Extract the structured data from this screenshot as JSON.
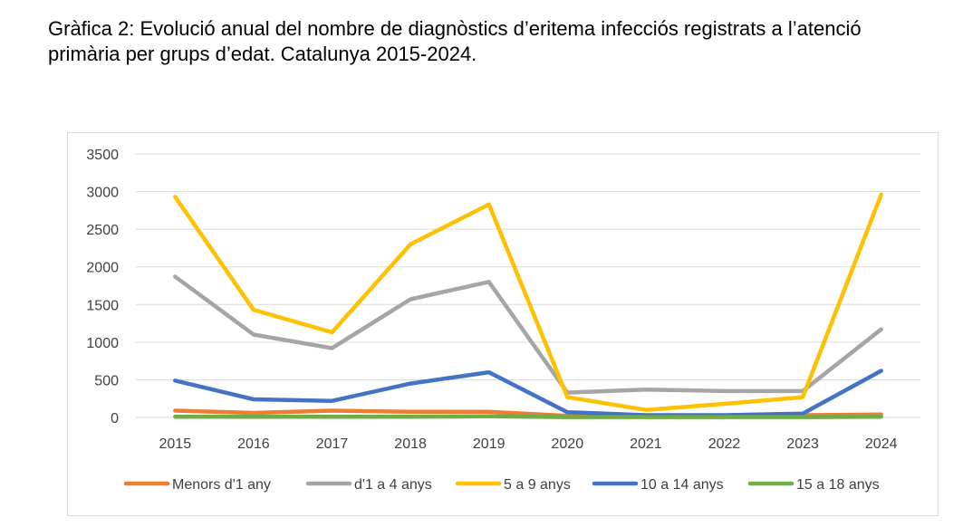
{
  "caption": "Gràfica 2: Evolució anual del nombre de diagnòstics d’eritema infecciós registrats a l’atenció primària per grups d’edat. Catalunya 2015-2024.",
  "chart_data": {
    "type": "line",
    "title": "",
    "xlabel": "",
    "ylabel": "",
    "categories": [
      "2015",
      "2016",
      "2017",
      "2018",
      "2019",
      "2020",
      "2021",
      "2022",
      "2023",
      "2024"
    ],
    "ylim": [
      0,
      3500
    ],
    "yticks": [
      0,
      500,
      1000,
      1500,
      2000,
      2500,
      3000,
      3500
    ],
    "grid": true,
    "legend_position": "bottom",
    "series": [
      {
        "name": "Menors d'1 any",
        "color": "#ED7D31",
        "values": [
          90,
          60,
          90,
          75,
          75,
          20,
          20,
          25,
          30,
          40
        ]
      },
      {
        "name": "d'1 a 4 anys",
        "color": "#A5A5A5",
        "values": [
          1870,
          1100,
          920,
          1570,
          1800,
          330,
          370,
          350,
          350,
          1170
        ]
      },
      {
        "name": "5 a 9 anys",
        "color": "#FFC000",
        "values": [
          2930,
          1430,
          1130,
          2300,
          2830,
          270,
          100,
          180,
          270,
          2960
        ]
      },
      {
        "name": "10 a 14 anys",
        "color": "#4472C4",
        "values": [
          490,
          240,
          220,
          450,
          600,
          70,
          30,
          30,
          50,
          620
        ]
      },
      {
        "name": "15 a 18 anys",
        "color": "#70AD47",
        "values": [
          10,
          10,
          10,
          10,
          15,
          5,
          5,
          5,
          5,
          10
        ]
      }
    ]
  }
}
